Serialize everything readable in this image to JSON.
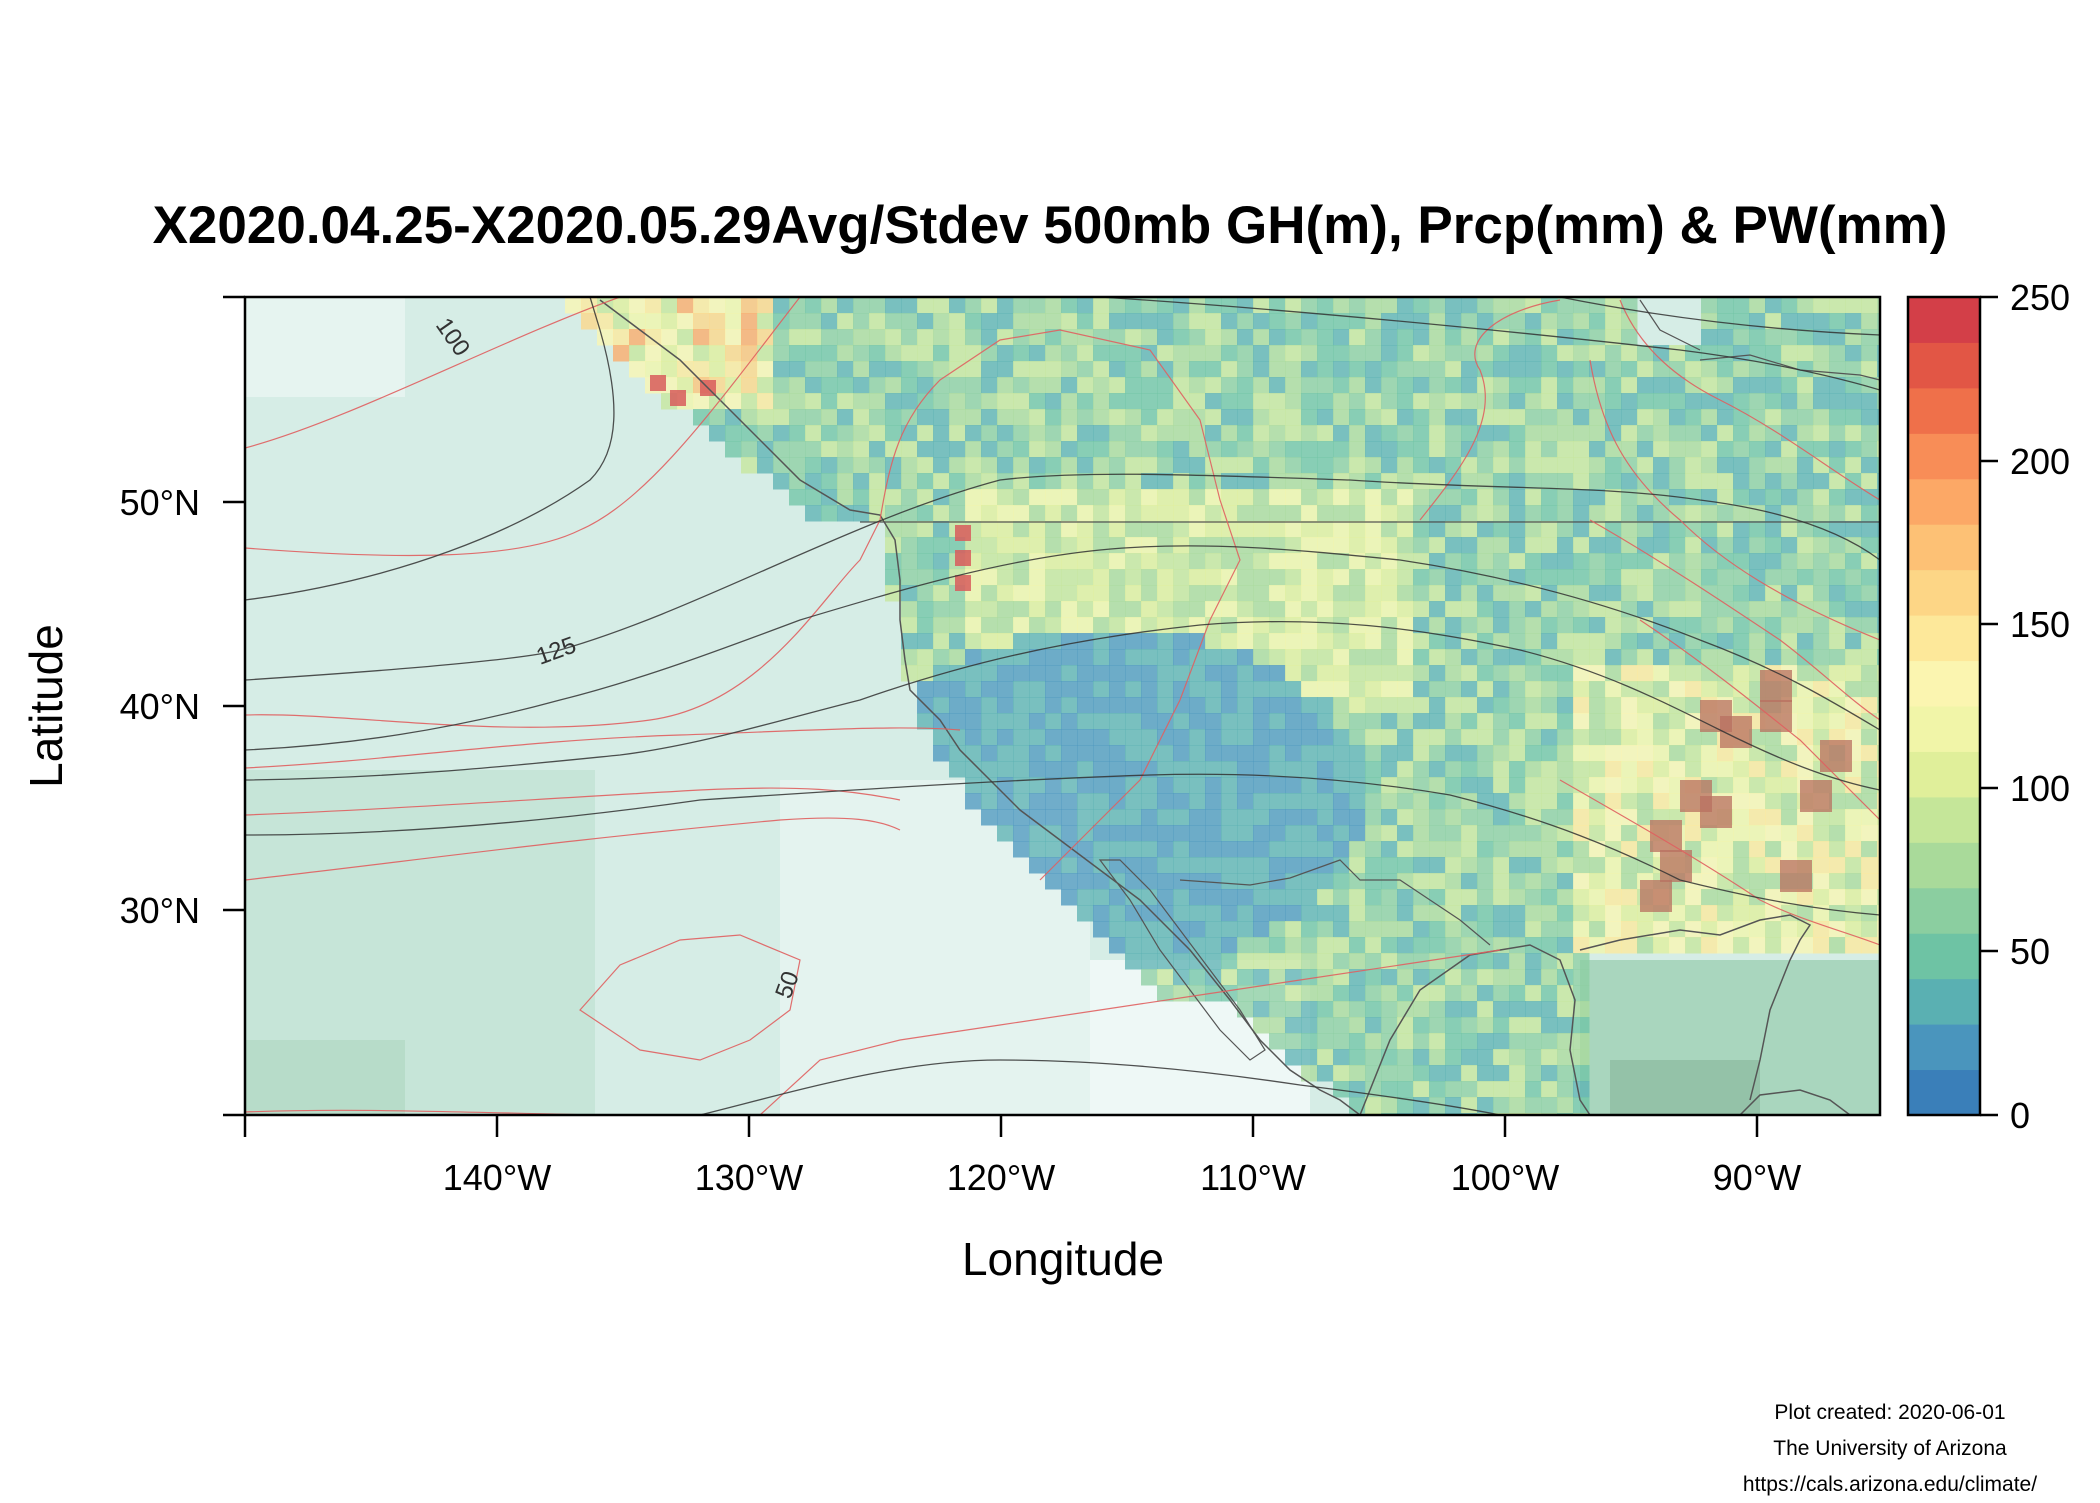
{
  "title": "X2020.04.25-X2020.05.29Avg/Stdev 500mb GH(m), Prcp(mm) & PW(mm)",
  "axes": {
    "xlabel": "Longitude",
    "ylabel": "Latitude",
    "x_ticks": [
      "140°W",
      "130°W",
      "120°W",
      "110°W",
      "100°W",
      "90°W"
    ],
    "y_ticks": [
      "50°N",
      "40°N",
      "30°N"
    ]
  },
  "colorbar": {
    "ticks": [
      "250",
      "200",
      "150",
      "100",
      "50",
      "0"
    ],
    "range": [
      0,
      250
    ],
    "colors": [
      "#3a7fb9",
      "#4a95bd",
      "#5ab0b2",
      "#6ec3a4",
      "#8bcea0",
      "#a9da9a",
      "#c5e699",
      "#e0ef9a",
      "#f1f5a8",
      "#fbf5b0",
      "#fde89a",
      "#fdd686",
      "#fdc175",
      "#fca866",
      "#f88d57",
      "#ef704a",
      "#e25645",
      "#d33f48"
    ]
  },
  "contour_labels": [
    "100",
    "125",
    "50"
  ],
  "credits": {
    "created": "Plot created: 2020-06-01",
    "org": "The University of Arizona",
    "url": "https://cals.arizona.edu/climate/"
  },
  "chart_data": {
    "type": "heatmap",
    "title": "X2020.04.25-X2020.05.29Avg/Stdev 500mb GH(m), Prcp(mm) & PW(mm)",
    "xlabel": "Longitude",
    "ylabel": "Latitude",
    "xlim": [
      -150,
      -85
    ],
    "ylim": [
      20,
      60
    ],
    "colorbar_range": [
      0,
      250
    ],
    "contours_gh_stdev_labels": [
      100,
      125,
      50
    ]
  }
}
